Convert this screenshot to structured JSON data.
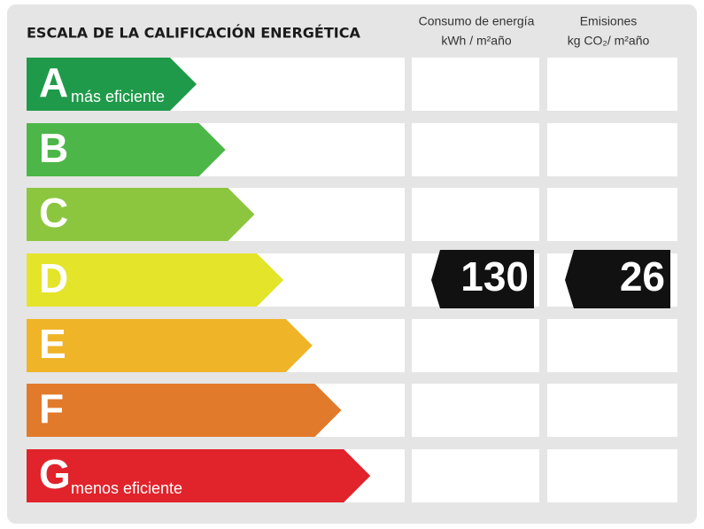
{
  "header": {
    "title": "ESCALA DE LA CALIFICACIÓN ENERGÉTICA"
  },
  "columns": [
    {
      "line1": "Consumo de energía",
      "line2": "kWh / m²año"
    },
    {
      "line1": "Emisiones",
      "line2": "kg CO₂/ m²año"
    }
  ],
  "rows": [
    {
      "letter": "A",
      "label": "más eficiente",
      "color": "#1f9a4a"
    },
    {
      "letter": "B",
      "color": "#4cb748"
    },
    {
      "letter": "C",
      "color": "#8cc63f"
    },
    {
      "letter": "D",
      "color": "#e4e42a",
      "consumo": 130,
      "emisiones": 26
    },
    {
      "letter": "E",
      "color": "#f0b429"
    },
    {
      "letter": "F",
      "color": "#e27a2b"
    },
    {
      "letter": "G",
      "label": "menos eficiente",
      "color": "#e1232b"
    }
  ]
}
